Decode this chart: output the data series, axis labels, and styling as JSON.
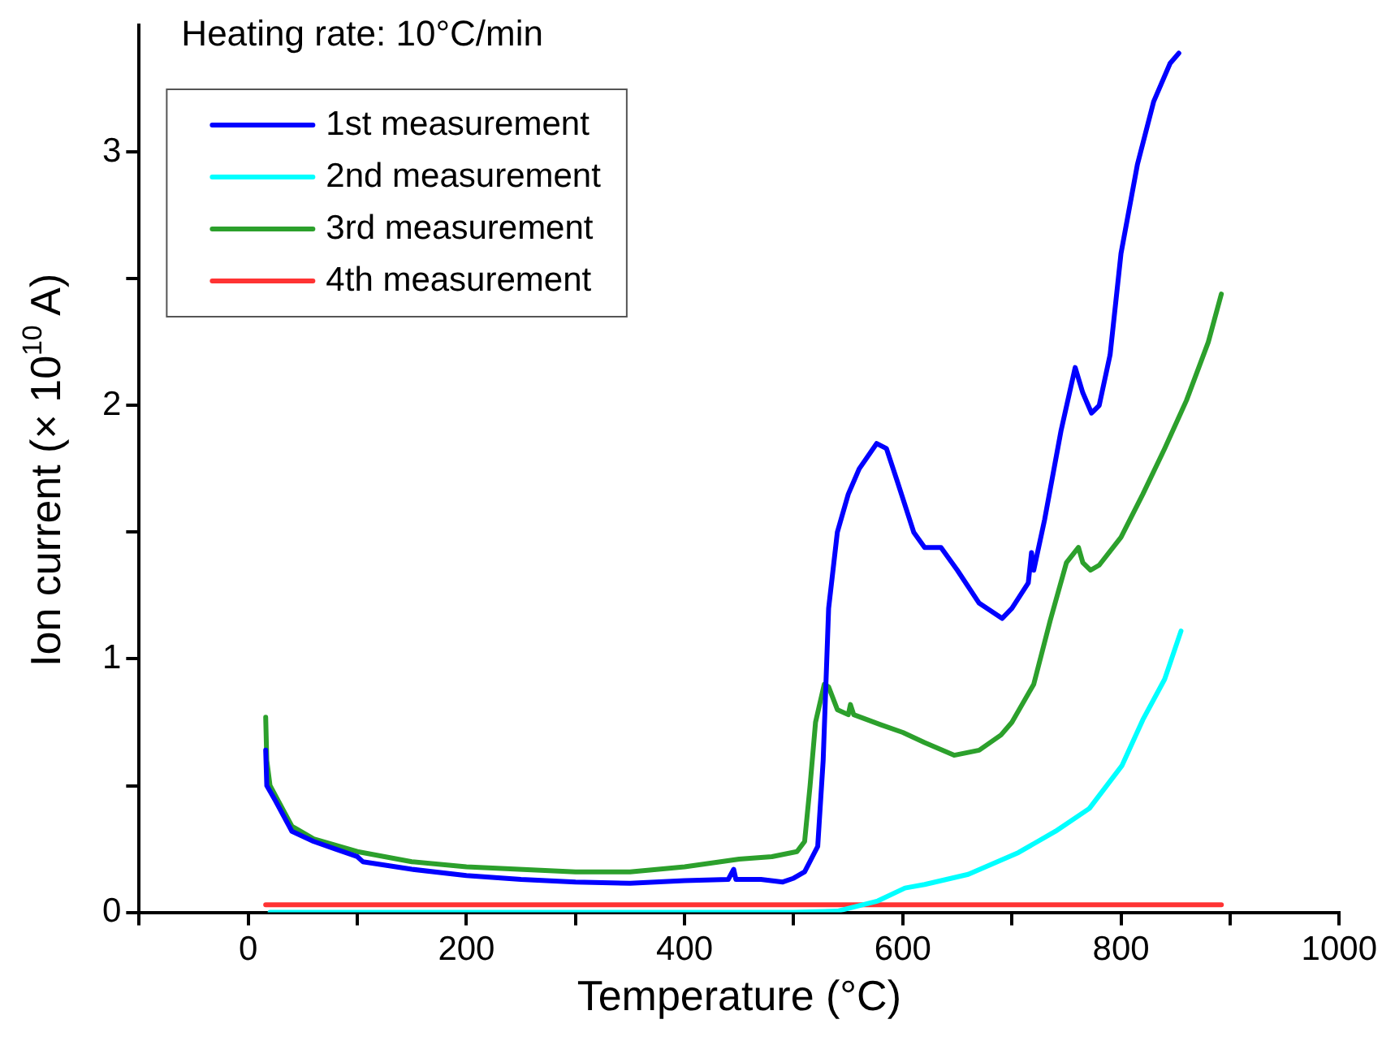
{
  "chart_data": {
    "type": "line",
    "xlabel": "Temperature (°C)",
    "ylabel": "Ion current (× 10$^{10}$ A)",
    "annotations": [
      "Heating rate: 10°C/min"
    ],
    "xlim": [
      -100,
      1000
    ],
    "xticks": [
      {
        "value": -100,
        "label": null
      },
      0,
      {
        "value": 100,
        "label": null
      },
      200,
      {
        "value": 300,
        "label": null
      },
      400,
      {
        "value": 500,
        "label": null
      },
      600,
      {
        "value": 700,
        "label": null
      },
      800,
      {
        "value": 900,
        "label": null
      },
      1000
    ],
    "ylim": [
      0,
      3.5
    ],
    "yticks": [
      0,
      {
        "value": 0.5,
        "label": null
      },
      1,
      {
        "value": 1.5,
        "label": null
      },
      2,
      {
        "value": 2.5,
        "label": null
      },
      3
    ],
    "grid": false,
    "legend": "top left",
    "marker": "none",
    "line_style": "solid",
    "series": [
      {
        "name": "1st measurement",
        "color": "#0000ff",
        "x": [
          16,
          17,
          25,
          35,
          40,
          60,
          80,
          100,
          105,
          150,
          200,
          250,
          300,
          350,
          400,
          440,
          445,
          447,
          470,
          490,
          500,
          510,
          522,
          527,
          532,
          540,
          550,
          560,
          576,
          585,
          595,
          610,
          620,
          635,
          650,
          670,
          691,
          700,
          715,
          718,
          720,
          730,
          745,
          758,
          765,
          773,
          780,
          790,
          800,
          815,
          830,
          845,
          853
        ],
        "values": [
          0.64,
          0.5,
          0.44,
          0.36,
          0.32,
          0.28,
          0.25,
          0.22,
          0.2,
          0.17,
          0.145,
          0.13,
          0.12,
          0.115,
          0.125,
          0.13,
          0.17,
          0.13,
          0.13,
          0.12,
          0.135,
          0.16,
          0.26,
          0.6,
          1.2,
          1.5,
          1.65,
          1.75,
          1.85,
          1.83,
          1.7,
          1.5,
          1.44,
          1.44,
          1.35,
          1.22,
          1.16,
          1.2,
          1.3,
          1.42,
          1.35,
          1.55,
          1.9,
          2.15,
          2.05,
          1.97,
          2.0,
          2.2,
          2.6,
          2.95,
          3.2,
          3.35,
          3.39
        ]
      },
      {
        "name": "2nd measurement",
        "color": "#00ffff",
        "x": [
          20,
          100,
          200,
          300,
          400,
          500,
          540,
          577,
          602,
          620,
          660,
          706,
          740,
          771,
          801,
          820,
          840,
          855
        ],
        "values": [
          0,
          0,
          0,
          0,
          0,
          0,
          0.005,
          0.045,
          0.096,
          0.11,
          0.15,
          0.236,
          0.32,
          0.41,
          0.58,
          0.76,
          0.92,
          1.11
        ]
      },
      {
        "name": "3rd measurement",
        "color": "#2ca02c",
        "x": [
          16,
          17,
          20,
          30,
          40,
          60,
          100,
          150,
          200,
          300,
          350,
          400,
          450,
          480,
          503,
          510,
          515,
          520,
          528,
          532,
          540,
          550,
          552,
          555,
          580,
          600,
          620,
          647,
          670,
          690,
          700,
          720,
          735,
          750,
          761,
          765,
          772,
          780,
          800,
          820,
          840,
          860,
          880,
          892
        ],
        "values": [
          0.77,
          0.6,
          0.5,
          0.42,
          0.34,
          0.29,
          0.24,
          0.2,
          0.18,
          0.16,
          0.16,
          0.18,
          0.21,
          0.22,
          0.24,
          0.28,
          0.5,
          0.75,
          0.9,
          0.89,
          0.8,
          0.78,
          0.82,
          0.78,
          0.74,
          0.71,
          0.67,
          0.62,
          0.64,
          0.7,
          0.75,
          0.9,
          1.15,
          1.38,
          1.44,
          1.38,
          1.35,
          1.37,
          1.48,
          1.65,
          1.83,
          2.02,
          2.25,
          2.44
        ]
      },
      {
        "name": "4th measurement",
        "color": "#ff3333",
        "x": [
          16,
          892
        ],
        "values": [
          0.03,
          0.03
        ]
      }
    ]
  }
}
